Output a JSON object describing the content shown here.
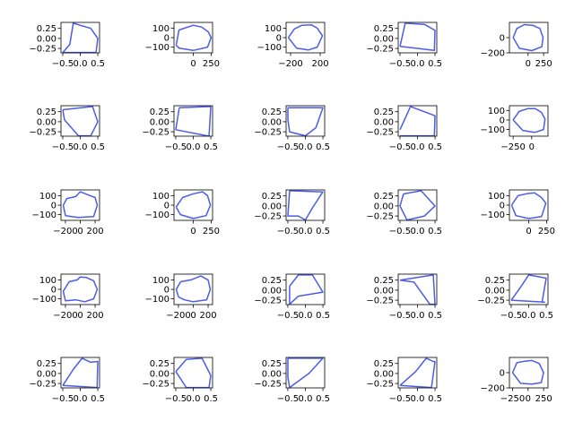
{
  "chart_data": [
    {
      "type": "line",
      "xticks": [
        "−0.5",
        "0.0",
        "0.5"
      ],
      "xtick_values": [
        -0.5,
        0.0,
        0.5
      ],
      "yticks": [
        "0.25",
        "0.00",
        "−0.25"
      ],
      "ytick_values": [
        0.25,
        0.0,
        -0.25
      ],
      "xlim": [
        -0.55,
        0.55
      ],
      "ylim": [
        -0.36,
        0.4
      ],
      "x": [
        -0.5,
        -0.3,
        -0.2,
        0.3,
        0.5,
        0.45,
        -0.5
      ],
      "y": [
        -0.35,
        -0.15,
        0.38,
        0.25,
        0.0,
        -0.35,
        -0.35
      ]
    },
    {
      "type": "line",
      "xticks": [
        "0",
        "250"
      ],
      "xtick_values": [
        0,
        250
      ],
      "yticks": [
        "100",
        "0",
        "−100"
      ],
      "ytick_values": [
        100,
        0,
        -100
      ],
      "xlim": [
        -270,
        270
      ],
      "ylim": [
        -160,
        160
      ],
      "x": [
        -240,
        -200,
        0,
        120,
        210,
        250,
        200,
        0,
        -200,
        -240
      ],
      "y": [
        -80,
        80,
        130,
        110,
        60,
        0,
        -100,
        -135,
        -110,
        -80
      ]
    },
    {
      "type": "line",
      "xticks": [
        "−200",
        "200"
      ],
      "xtick_values": [
        -200,
        200
      ],
      "yticks": [
        "100",
        "0",
        "−100"
      ],
      "ytick_values": [
        100,
        0,
        -100
      ],
      "xlim": [
        -260,
        260
      ],
      "ylim": [
        -160,
        160
      ],
      "x": [
        -230,
        -150,
        -50,
        80,
        160,
        230,
        160,
        40,
        -120,
        -230
      ],
      "y": [
        0,
        90,
        130,
        135,
        100,
        20,
        -100,
        -130,
        -110,
        0
      ]
    },
    {
      "type": "line",
      "xticks": [
        "−0.5",
        "0.0",
        "0.5"
      ],
      "xtick_values": [
        -0.5,
        0.0,
        0.5
      ],
      "yticks": [
        "0.25",
        "0.00",
        "−0.25"
      ],
      "ytick_values": [
        0.25,
        0.0,
        -0.25
      ],
      "xlim": [
        -0.55,
        0.55
      ],
      "ylim": [
        -0.36,
        0.4
      ],
      "x": [
        -0.5,
        -0.35,
        0.2,
        0.5,
        0.48,
        -0.5
      ],
      "y": [
        -0.2,
        0.38,
        0.35,
        0.2,
        -0.3,
        -0.2
      ]
    },
    {
      "type": "line",
      "xticks": [
        "0",
        "250"
      ],
      "xtick_values": [
        0,
        250
      ],
      "yticks": [
        "0",
        "−200"
      ],
      "ytick_values": [
        0,
        -200
      ],
      "xlim": [
        -300,
        320
      ],
      "ylim": [
        -200,
        200
      ],
      "x": [
        -240,
        -180,
        -60,
        80,
        190,
        240,
        220,
        60,
        -140,
        -240
      ],
      "y": [
        0,
        120,
        170,
        160,
        120,
        0,
        -120,
        -170,
        -140,
        0
      ]
    },
    {
      "type": "line",
      "xticks": [
        "−0.5",
        "0.0",
        "0.5"
      ],
      "xtick_values": [
        -0.5,
        0.0,
        0.5
      ],
      "yticks": [
        "0.25",
        "0.00",
        "−0.25"
      ],
      "ytick_values": [
        0.25,
        0.0,
        -0.25
      ],
      "xlim": [
        -0.55,
        0.55
      ],
      "ylim": [
        -0.36,
        0.4
      ],
      "x": [
        -0.5,
        0.35,
        0.5,
        0.3,
        -0.05,
        -0.45,
        -0.5
      ],
      "y": [
        0.3,
        0.38,
        0.0,
        -0.35,
        -0.35,
        0.05,
        0.3
      ]
    },
    {
      "type": "line",
      "xticks": [
        "−0.5",
        "0.0",
        "0.5"
      ],
      "xtick_values": [
        -0.5,
        0.0,
        0.5
      ],
      "yticks": [
        "0.25",
        "0.00",
        "−0.25"
      ],
      "ytick_values": [
        0.25,
        0.0,
        -0.25
      ],
      "xlim": [
        -0.55,
        0.55
      ],
      "ylim": [
        -0.36,
        0.4
      ],
      "x": [
        -0.4,
        0.5,
        0.45,
        0.4,
        -0.5,
        -0.4
      ],
      "y": [
        0.35,
        0.38,
        -0.35,
        -0.35,
        -0.2,
        0.35
      ]
    },
    {
      "type": "line",
      "xticks": [
        "−0.5",
        "0.0",
        "0.5"
      ],
      "xtick_values": [
        -0.5,
        0.0,
        0.5
      ],
      "yticks": [
        "0.25",
        "0.00",
        "−0.25"
      ],
      "ytick_values": [
        0.25,
        0.0,
        -0.25
      ],
      "xlim": [
        -0.55,
        0.55
      ],
      "ylim": [
        -0.36,
        0.4
      ],
      "x": [
        -0.5,
        0.5,
        0.3,
        0.0,
        -0.45,
        -0.5,
        -0.5
      ],
      "y": [
        0.35,
        0.35,
        -0.15,
        -0.35,
        -0.25,
        0.05,
        0.35
      ]
    },
    {
      "type": "line",
      "xticks": [
        "−0.5",
        "0.0",
        "0.5"
      ],
      "xtick_values": [
        -0.5,
        0.0,
        0.5
      ],
      "yticks": [
        "0.25",
        "0.00",
        "−0.25"
      ],
      "ytick_values": [
        0.25,
        0.0,
        -0.25
      ],
      "xlim": [
        -0.55,
        0.55
      ],
      "ylim": [
        -0.36,
        0.4
      ],
      "x": [
        -0.5,
        -0.2,
        0.5,
        0.48,
        -0.5
      ],
      "y": [
        -0.2,
        0.38,
        0.15,
        -0.35,
        -0.35
      ]
    },
    {
      "type": "line",
      "xticks": [
        "−250",
        "0"
      ],
      "xtick_values": [
        -250,
        0
      ],
      "yticks": [
        "100",
        "0",
        "−100"
      ],
      "ytick_values": [
        100,
        0,
        -100
      ],
      "xlim": [
        -300,
        220
      ],
      "ylim": [
        -170,
        150
      ],
      "x": [
        -250,
        -170,
        -50,
        50,
        130,
        180,
        160,
        40,
        -120,
        -250
      ],
      "y": [
        0,
        90,
        120,
        120,
        80,
        10,
        -100,
        -130,
        -110,
        0
      ]
    },
    {
      "type": "line",
      "xticks": [
        "−200",
        "0",
        "200"
      ],
      "xtick_values": [
        -200,
        0,
        200
      ],
      "yticks": [
        "100",
        "0",
        "−100"
      ],
      "ytick_values": [
        100,
        0,
        -100
      ],
      "xlim": [
        -260,
        260
      ],
      "ylim": [
        -160,
        160
      ],
      "x": [
        -230,
        -180,
        -60,
        0,
        100,
        200,
        230,
        180,
        -30,
        -200,
        -230
      ],
      "y": [
        0,
        70,
        90,
        140,
        110,
        80,
        0,
        -120,
        -130,
        -110,
        0
      ]
    },
    {
      "type": "line",
      "xticks": [
        "0",
        "250"
      ],
      "xtick_values": [
        0,
        250
      ],
      "yticks": [
        "100",
        "0",
        "−100"
      ],
      "ytick_values": [
        100,
        0,
        -100
      ],
      "xlim": [
        -270,
        270
      ],
      "ylim": [
        -160,
        160
      ],
      "x": [
        -240,
        -150,
        0,
        130,
        200,
        240,
        180,
        0,
        -180,
        -240
      ],
      "y": [
        -20,
        80,
        120,
        140,
        100,
        0,
        -110,
        -140,
        -100,
        -20
      ]
    },
    {
      "type": "line",
      "xticks": [
        "−0.5",
        "0.0",
        "0.5"
      ],
      "xtick_values": [
        -0.5,
        0.0,
        0.5
      ],
      "yticks": [
        "0.25",
        "0.00",
        "−0.25"
      ],
      "ytick_values": [
        0.25,
        0.0,
        -0.25
      ],
      "xlim": [
        -0.55,
        0.55
      ],
      "ylim": [
        -0.36,
        0.4
      ],
      "x": [
        -0.45,
        0.5,
        0.2,
        0.0,
        -0.2,
        -0.5,
        -0.45
      ],
      "y": [
        0.38,
        0.35,
        -0.05,
        -0.35,
        -0.25,
        -0.25,
        0.38
      ]
    },
    {
      "type": "line",
      "xticks": [
        "−0.5",
        "0.0",
        "0.5"
      ],
      "xtick_values": [
        -0.5,
        0.0,
        0.5
      ],
      "yticks": [
        "0.25",
        "0.00",
        "−0.25"
      ],
      "ytick_values": [
        0.25,
        0.0,
        -0.25
      ],
      "xlim": [
        -0.55,
        0.55
      ],
      "ylim": [
        -0.36,
        0.4
      ],
      "x": [
        -0.4,
        0.1,
        0.5,
        0.2,
        -0.3,
        -0.5,
        -0.4
      ],
      "y": [
        0.3,
        0.38,
        0.0,
        -0.25,
        -0.35,
        0.0,
        0.3
      ]
    },
    {
      "type": "line",
      "xticks": [
        "0",
        "250"
      ],
      "xtick_values": [
        0,
        250
      ],
      "yticks": [
        "100",
        "0",
        "−100"
      ],
      "ytick_values": [
        100,
        0,
        -100
      ],
      "xlim": [
        -270,
        270
      ],
      "ylim": [
        -160,
        160
      ],
      "x": [
        -240,
        -150,
        -30,
        80,
        180,
        240,
        180,
        0,
        -180,
        -240
      ],
      "y": [
        0,
        100,
        120,
        130,
        80,
        20,
        -120,
        -140,
        -110,
        0
      ]
    },
    {
      "type": "line",
      "xticks": [
        "−200",
        "0",
        "200"
      ],
      "xtick_values": [
        -200,
        0,
        200
      ],
      "yticks": [
        "100",
        "0",
        "−100"
      ],
      "ytick_values": [
        100,
        0,
        -100
      ],
      "xlim": [
        -260,
        260
      ],
      "ylim": [
        -160,
        160
      ],
      "x": [
        -230,
        -150,
        -40,
        0,
        80,
        180,
        230,
        180,
        60,
        -60,
        -200,
        -230
      ],
      "y": [
        -20,
        80,
        100,
        130,
        125,
        90,
        0,
        -100,
        -130,
        -110,
        -120,
        -20
      ]
    },
    {
      "type": "line",
      "xticks": [
        "−200",
        "0",
        "200"
      ],
      "xtick_values": [
        -200,
        0,
        200
      ],
      "yticks": [
        "100",
        "0",
        "−100"
      ],
      "ytick_values": [
        100,
        0,
        -100
      ],
      "xlim": [
        -260,
        260
      ],
      "ylim": [
        -160,
        160
      ],
      "x": [
        -230,
        -170,
        -30,
        100,
        200,
        230,
        180,
        0,
        -120,
        -200,
        -230
      ],
      "y": [
        0,
        80,
        100,
        140,
        100,
        0,
        -110,
        -130,
        -110,
        -80,
        0
      ]
    },
    {
      "type": "line",
      "xticks": [
        "−0.5",
        "0.0",
        "0.5"
      ],
      "xtick_values": [
        -0.5,
        0.0,
        0.5
      ],
      "yticks": [
        "0.25",
        "0.00",
        "−0.25"
      ],
      "ytick_values": [
        0.25,
        0.0,
        -0.25
      ],
      "xlim": [
        -0.55,
        0.55
      ],
      "ylim": [
        -0.36,
        0.4
      ],
      "x": [
        -0.45,
        -0.2,
        0.2,
        0.5,
        -0.2,
        -0.45,
        -0.45
      ],
      "y": [
        0.1,
        0.38,
        0.38,
        -0.05,
        -0.15,
        -0.35,
        0.1
      ]
    },
    {
      "type": "line",
      "xticks": [
        "−0.5",
        "0.0",
        "0.5"
      ],
      "xtick_values": [
        -0.5,
        0.0,
        0.5
      ],
      "yticks": [
        "0.25",
        "0.00",
        "−0.25"
      ],
      "ytick_values": [
        0.25,
        0.0,
        -0.25
      ],
      "xlim": [
        -0.55,
        0.55
      ],
      "ylim": [
        -0.36,
        0.4
      ],
      "x": [
        -0.5,
        0.45,
        0.5,
        0.35,
        -0.1,
        -0.5
      ],
      "y": [
        0.25,
        0.38,
        -0.35,
        -0.35,
        0.2,
        0.25
      ]
    },
    {
      "type": "line",
      "xticks": [
        "−0.5",
        "0.0",
        "0.5"
      ],
      "xtick_values": [
        -0.5,
        0.0,
        0.5
      ],
      "yticks": [
        "0.25",
        "0.00",
        "−0.25"
      ],
      "ytick_values": [
        0.25,
        0.0,
        -0.25
      ],
      "xlim": [
        -0.55,
        0.55
      ],
      "ylim": [
        -0.36,
        0.4
      ],
      "x": [
        -0.5,
        -0.25,
        0.0,
        0.5,
        0.38,
        0.45,
        -0.5
      ],
      "y": [
        -0.25,
        0.05,
        0.38,
        0.3,
        -0.3,
        -0.3,
        -0.25
      ]
    },
    {
      "type": "line",
      "xticks": [
        "−0.5",
        "0.0",
        "0.5"
      ],
      "xtick_values": [
        -0.5,
        0.0,
        0.5
      ],
      "yticks": [
        "0.25",
        "0.00",
        "−0.25"
      ],
      "ytick_values": [
        0.25,
        0.0,
        -0.25
      ],
      "xlim": [
        -0.55,
        0.55
      ],
      "ylim": [
        -0.36,
        0.4
      ],
      "x": [
        -0.5,
        -0.2,
        0.05,
        0.3,
        0.5,
        0.48,
        -0.5
      ],
      "y": [
        -0.3,
        0.1,
        0.38,
        0.28,
        0.3,
        -0.35,
        -0.3
      ]
    },
    {
      "type": "line",
      "xticks": [
        "−0.5",
        "0.0",
        "0.5"
      ],
      "xtick_values": [
        -0.5,
        0.0,
        0.5
      ],
      "yticks": [
        "0.25",
        "0.00",
        "−0.25"
      ],
      "ytick_values": [
        0.25,
        0.0,
        -0.25
      ],
      "xlim": [
        -0.55,
        0.55
      ],
      "ylim": [
        -0.36,
        0.4
      ],
      "x": [
        -0.5,
        -0.2,
        0.25,
        0.5,
        0.45,
        -0.2,
        -0.5
      ],
      "y": [
        0.05,
        0.35,
        0.38,
        -0.05,
        -0.35,
        -0.35,
        0.05
      ]
    },
    {
      "type": "line",
      "xticks": [
        "−0.5",
        "0.0",
        "0.5"
      ],
      "xtick_values": [
        -0.5,
        0.0,
        0.5
      ],
      "yticks": [
        "0.25",
        "0.00",
        "−0.25"
      ],
      "ytick_values": [
        0.25,
        0.0,
        -0.25
      ],
      "xlim": [
        -0.55,
        0.55
      ],
      "ylim": [
        -0.36,
        0.4
      ],
      "x": [
        -0.5,
        0.5,
        0.1,
        -0.45,
        -0.5,
        -0.5
      ],
      "y": [
        0.38,
        0.38,
        0.0,
        -0.35,
        -0.1,
        0.38
      ]
    },
    {
      "type": "line",
      "xticks": [
        "−0.5",
        "0.0",
        "0.5"
      ],
      "xtick_values": [
        -0.5,
        0.0,
        0.5
      ],
      "yticks": [
        "0.25",
        "0.00",
        "−0.25"
      ],
      "ytick_values": [
        0.25,
        0.0,
        -0.25
      ],
      "xlim": [
        -0.55,
        0.55
      ],
      "ylim": [
        -0.36,
        0.4
      ],
      "x": [
        -0.5,
        -0.05,
        0.25,
        0.45,
        0.5,
        0.4,
        -0.5
      ],
      "y": [
        -0.3,
        0.05,
        0.38,
        0.3,
        0.3,
        -0.35,
        -0.3
      ]
    },
    {
      "type": "line",
      "xticks": [
        "−250",
        "0",
        "250"
      ],
      "xtick_values": [
        -250,
        0,
        250
      ],
      "yticks": [
        "0",
        "−200"
      ],
      "ytick_values": [
        0,
        -200
      ],
      "xlim": [
        -300,
        320
      ],
      "ylim": [
        -200,
        200
      ],
      "x": [
        -250,
        -180,
        -60,
        60,
        180,
        250,
        210,
        60,
        -120,
        -250
      ],
      "y": [
        0,
        130,
        150,
        160,
        120,
        0,
        -130,
        -150,
        -140,
        0
      ]
    }
  ],
  "colors": {
    "line": "#4a5de8",
    "axis": "#000000",
    "background": "#ffffff"
  }
}
